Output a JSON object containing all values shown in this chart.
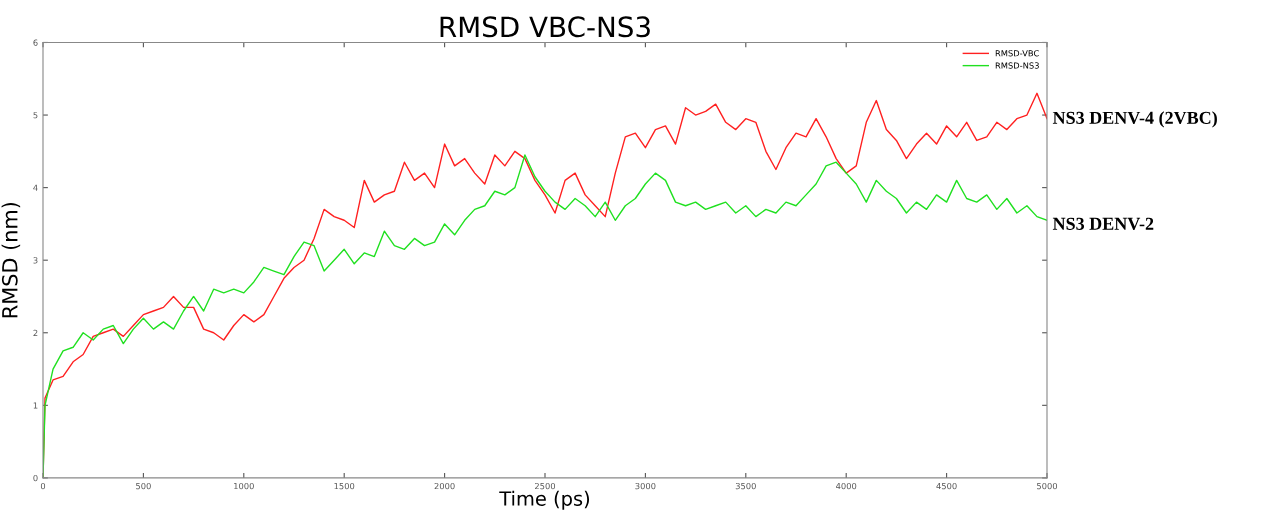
{
  "chart_data": {
    "type": "line",
    "title": "RMSD VBC-NS3",
    "xlabel": "Time (ps)",
    "ylabel": "RMSD (nm)",
    "xlim": [
      0,
      5000
    ],
    "xticks": [
      0,
      500,
      1000,
      1500,
      2000,
      2500,
      3000,
      3500,
      4000,
      4500,
      5000
    ],
    "ylim": [
      0,
      6
    ],
    "yticks": [
      0,
      1,
      2,
      3,
      4,
      5,
      6
    ],
    "grid": false,
    "legend": "top right",
    "x": [
      0,
      10,
      50,
      100,
      150,
      200,
      250,
      300,
      350,
      400,
      450,
      500,
      550,
      600,
      650,
      700,
      750,
      800,
      850,
      900,
      950,
      1000,
      1050,
      1100,
      1150,
      1200,
      1250,
      1300,
      1350,
      1400,
      1450,
      1500,
      1550,
      1600,
      1650,
      1700,
      1750,
      1800,
      1850,
      1900,
      1950,
      2000,
      2050,
      2100,
      2150,
      2200,
      2250,
      2300,
      2350,
      2400,
      2450,
      2500,
      2550,
      2600,
      2650,
      2700,
      2750,
      2800,
      2850,
      2900,
      2950,
      3000,
      3050,
      3100,
      3150,
      3200,
      3250,
      3300,
      3350,
      3400,
      3450,
      3500,
      3550,
      3600,
      3650,
      3700,
      3750,
      3800,
      3850,
      3900,
      3950,
      4000,
      4050,
      4100,
      4150,
      4200,
      4250,
      4300,
      4350,
      4400,
      4450,
      4500,
      4550,
      4600,
      4650,
      4700,
      4750,
      4800,
      4850,
      4900,
      4950,
      5000
    ],
    "series": [
      {
        "name": "RMSD-VBC",
        "color": "#ff2020",
        "values": [
          0,
          1.1,
          1.35,
          1.4,
          1.6,
          1.7,
          1.95,
          2.0,
          2.05,
          1.95,
          2.1,
          2.25,
          2.3,
          2.35,
          2.5,
          2.35,
          2.35,
          2.05,
          2.0,
          1.9,
          2.1,
          2.25,
          2.15,
          2.25,
          2.5,
          2.75,
          2.9,
          3.0,
          3.3,
          3.7,
          3.6,
          3.55,
          3.45,
          4.1,
          3.8,
          3.9,
          3.95,
          4.35,
          4.1,
          4.2,
          4.0,
          4.6,
          4.3,
          4.4,
          4.2,
          4.05,
          4.45,
          4.3,
          4.5,
          4.4,
          4.1,
          3.9,
          3.65,
          4.1,
          4.2,
          3.9,
          3.75,
          3.6,
          4.2,
          4.7,
          4.75,
          4.55,
          4.8,
          4.85,
          4.6,
          5.1,
          5.0,
          5.05,
          5.15,
          4.9,
          4.8,
          4.95,
          4.9,
          4.5,
          4.25,
          4.55,
          4.75,
          4.7,
          4.95,
          4.7,
          4.4,
          4.2,
          4.3,
          4.9,
          5.2,
          4.8,
          4.65,
          4.4,
          4.6,
          4.75,
          4.6,
          4.85,
          4.7,
          4.9,
          4.65,
          4.7,
          4.9,
          4.8,
          4.95,
          5.0,
          5.3,
          4.95
        ]
      },
      {
        "name": "RMSD-NS3",
        "color": "#20e020",
        "values": [
          0,
          1.0,
          1.5,
          1.75,
          1.8,
          2.0,
          1.9,
          2.05,
          2.1,
          1.85,
          2.05,
          2.2,
          2.05,
          2.15,
          2.05,
          2.3,
          2.5,
          2.3,
          2.6,
          2.55,
          2.6,
          2.55,
          2.7,
          2.9,
          2.85,
          2.8,
          3.05,
          3.25,
          3.2,
          2.85,
          3.0,
          3.15,
          2.95,
          3.1,
          3.05,
          3.4,
          3.2,
          3.15,
          3.3,
          3.2,
          3.25,
          3.5,
          3.35,
          3.55,
          3.7,
          3.75,
          3.95,
          3.9,
          4.0,
          4.45,
          4.15,
          3.95,
          3.8,
          3.7,
          3.85,
          3.75,
          3.6,
          3.8,
          3.55,
          3.75,
          3.85,
          4.05,
          4.2,
          4.1,
          3.8,
          3.75,
          3.8,
          3.7,
          3.75,
          3.8,
          3.65,
          3.75,
          3.6,
          3.7,
          3.65,
          3.8,
          3.75,
          3.9,
          4.05,
          4.3,
          4.35,
          4.2,
          4.05,
          3.8,
          4.1,
          3.95,
          3.85,
          3.65,
          3.8,
          3.7,
          3.9,
          3.8,
          4.1,
          3.85,
          3.8,
          3.9,
          3.7,
          3.85,
          3.65,
          3.75,
          3.6,
          3.55
        ]
      }
    ],
    "annotations": [
      {
        "text": "NS3 DENV-4 (2VBC)",
        "x": 5000,
        "y": 4.94
      },
      {
        "text": "NS3 DENV-2",
        "x": 5000,
        "y": 3.48
      }
    ]
  }
}
